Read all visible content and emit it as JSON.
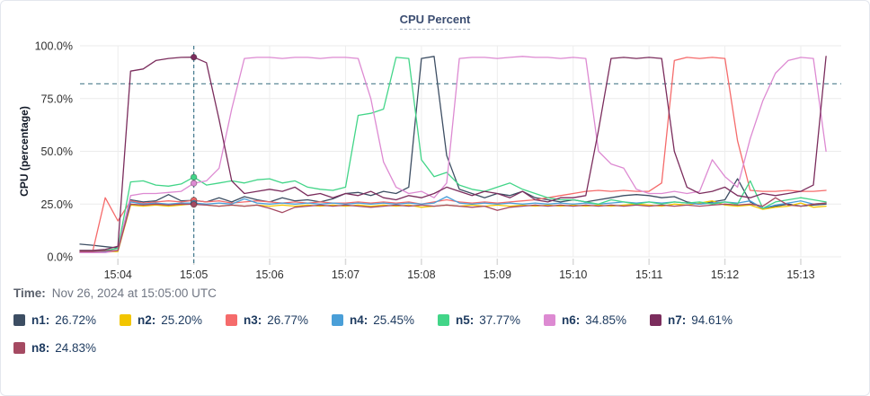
{
  "title": "CPU Percent",
  "time_label": {
    "prefix": "Time:",
    "value": "Nov 26, 2024 at 15:05:00 UTC"
  },
  "legend": [
    {
      "name": "n1:",
      "value": "26.72%",
      "color": "#3d4e63"
    },
    {
      "name": "n2:",
      "value": "25.20%",
      "color": "#f2c500"
    },
    {
      "name": "n3:",
      "value": "26.77%",
      "color": "#f56b6b"
    },
    {
      "name": "n4:",
      "value": "25.45%",
      "color": "#4a9fd8"
    },
    {
      "name": "n5:",
      "value": "37.77%",
      "color": "#42d588"
    },
    {
      "name": "n6:",
      "value": "34.85%",
      "color": "#dd8ad2"
    },
    {
      "name": "n7:",
      "value": "94.61%",
      "color": "#7b2d5d"
    },
    {
      "name": "n8:",
      "value": "24.83%",
      "color": "#a54a62"
    }
  ],
  "chart_data": {
    "type": "line",
    "title": "CPU Percent",
    "xlabel": "",
    "ylabel": "CPU (percentage)",
    "ylim": [
      0,
      100
    ],
    "grid": true,
    "y_ticks": [
      "0.0%",
      "25.0%",
      "50.0%",
      "75.0%",
      "100.0%"
    ],
    "x_tick_labels": [
      "15:04",
      "15:05",
      "15:06",
      "15:07",
      "15:08",
      "15:09",
      "15:10",
      "15:11",
      "15:12",
      "15:13"
    ],
    "x_tick_offsets_seconds": [
      30,
      90,
      150,
      210,
      270,
      330,
      390,
      450,
      510,
      570
    ],
    "time_start": "15:03:30",
    "point_interval_seconds": 10,
    "x_domain_seconds": 602,
    "threshold_value": 82,
    "crosshair": {
      "time": "15:05:00",
      "index": 9
    },
    "series": [
      {
        "name": "n1",
        "color": "#3d4e63",
        "values": [
          6,
          5.5,
          4.8,
          4.2,
          27,
          26,
          26.5,
          29.5,
          26.5,
          26.72,
          26,
          28,
          26,
          28.5,
          27,
          26,
          28,
          26.5,
          27,
          26,
          27.5,
          30,
          30.5,
          29,
          31,
          30,
          33,
          94,
          95,
          48,
          32,
          30,
          28,
          30,
          29,
          31,
          28,
          27,
          26,
          27,
          26,
          27,
          28,
          29,
          29.5,
          29,
          28,
          28.5,
          26,
          25,
          26,
          27,
          37,
          26,
          23,
          24,
          25,
          24,
          24.5,
          25
        ]
      },
      {
        "name": "n2",
        "color": "#f2c500",
        "values": [
          2,
          2,
          2.2,
          2.5,
          24.5,
          24,
          24.5,
          24,
          24.5,
          25.2,
          24.5,
          24,
          24.5,
          24,
          24.5,
          24,
          24.5,
          24,
          24.5,
          24,
          24.5,
          24,
          24.5,
          24,
          24.5,
          24,
          24.5,
          23.5,
          24,
          24.5,
          24,
          24.5,
          24,
          24.5,
          24,
          24.5,
          24,
          24.5,
          24,
          24.5,
          24,
          24.5,
          24,
          24.5,
          25,
          24.5,
          24,
          25,
          24.5,
          25.5,
          26.5,
          24.5,
          24,
          24.5,
          22.5,
          23.5,
          24,
          25.5,
          23.5,
          24
        ]
      },
      {
        "name": "n3",
        "color": "#f56b6b",
        "values": [
          2.5,
          2.5,
          28,
          17,
          26.5,
          25.5,
          26,
          26.5,
          26,
          26.77,
          26,
          26.5,
          25.5,
          26,
          26.5,
          26,
          25.5,
          26,
          25.5,
          26,
          25.5,
          25.5,
          26,
          25.5,
          26,
          25.5,
          26,
          25,
          26,
          27,
          26,
          25.5,
          26,
          25.5,
          26,
          26.5,
          27,
          28,
          29,
          30,
          31,
          31.5,
          31,
          31.5,
          31,
          31,
          35,
          93,
          94.5,
          94,
          94.5,
          94,
          55,
          31.5,
          31,
          31,
          31.5,
          31,
          31,
          31.5
        ]
      },
      {
        "name": "n4",
        "color": "#4a9fd8",
        "values": [
          2,
          2,
          2.3,
          3,
          26,
          25,
          25.5,
          25,
          25.5,
          25.45,
          25,
          25.5,
          25,
          27.5,
          25.5,
          25,
          25.5,
          25,
          25.5,
          25,
          25.5,
          25,
          25.5,
          25,
          25.5,
          25,
          25.5,
          25,
          25.5,
          28.5,
          25.5,
          25,
          25.5,
          25,
          25.5,
          25,
          25.5,
          25,
          25.5,
          25,
          25.5,
          25,
          25.5,
          26,
          25.5,
          26,
          25.5,
          26,
          25.5,
          25,
          25.5,
          26,
          25.5,
          26.5,
          23,
          24.5,
          25.5,
          26.5,
          25,
          25.5
        ]
      },
      {
        "name": "n5",
        "color": "#42d588",
        "values": [
          3,
          3,
          3,
          4,
          35.5,
          36,
          34,
          33.5,
          34.5,
          37.77,
          34,
          35,
          36,
          35,
          36.5,
          37,
          35,
          36,
          33,
          32,
          31.5,
          33,
          67,
          68,
          70,
          94.5,
          94,
          46,
          38,
          40,
          34,
          32,
          31,
          33,
          35,
          32,
          30,
          28,
          27,
          27,
          26,
          25,
          27,
          26,
          25,
          26,
          25,
          26,
          25.5,
          26,
          25,
          26,
          25,
          36,
          23,
          26,
          27,
          28,
          27,
          26
        ]
      },
      {
        "name": "n6",
        "color": "#dd8ad2",
        "values": [
          2,
          2,
          2,
          3,
          29,
          30,
          30,
          30.5,
          31,
          34.85,
          36,
          42,
          70,
          94,
          94.5,
          94.5,
          94,
          94.5,
          94.5,
          94,
          94.5,
          94.5,
          94,
          75,
          45,
          33,
          30,
          31,
          28,
          35,
          94,
          94.5,
          94.5,
          94,
          94.5,
          95,
          94.5,
          94.5,
          94,
          94.5,
          94,
          50,
          44,
          42,
          32,
          30,
          30,
          31,
          30,
          31,
          46,
          38,
          33,
          56,
          74,
          87,
          93,
          94.5,
          94,
          50
        ]
      },
      {
        "name": "n7",
        "color": "#7b2d5d",
        "values": [
          3,
          3,
          3.5,
          5,
          88,
          89,
          93,
          94,
          94.5,
          94.61,
          92,
          65,
          36,
          30,
          31,
          32,
          31,
          33,
          29,
          30,
          28,
          30,
          29,
          31,
          28,
          27,
          29,
          28,
          30,
          33,
          31,
          29,
          31,
          30,
          28,
          31,
          27,
          26,
          28,
          28,
          29,
          60,
          94,
          94.5,
          94,
          94.5,
          94,
          50,
          33,
          30,
          31,
          33,
          29,
          28,
          30,
          29,
          30,
          31,
          34,
          95
        ]
      },
      {
        "name": "n8",
        "color": "#a54a62",
        "values": [
          2.5,
          2.5,
          2.8,
          3,
          25,
          24.5,
          25,
          24.5,
          25,
          24.83,
          24.5,
          24,
          24.5,
          24,
          24.5,
          23,
          21,
          23.5,
          24,
          24.5,
          24,
          24.5,
          24,
          23.5,
          24,
          24.5,
          24,
          24.5,
          24,
          24.5,
          24,
          23.5,
          24,
          22,
          23.5,
          24,
          24.5,
          24,
          24.5,
          24,
          24.5,
          24,
          24.5,
          24,
          24.5,
          24,
          24.5,
          24,
          24.5,
          24,
          24.5,
          25,
          24.5,
          25,
          24,
          28,
          24.5,
          24,
          25,
          25.5
        ]
      }
    ]
  }
}
